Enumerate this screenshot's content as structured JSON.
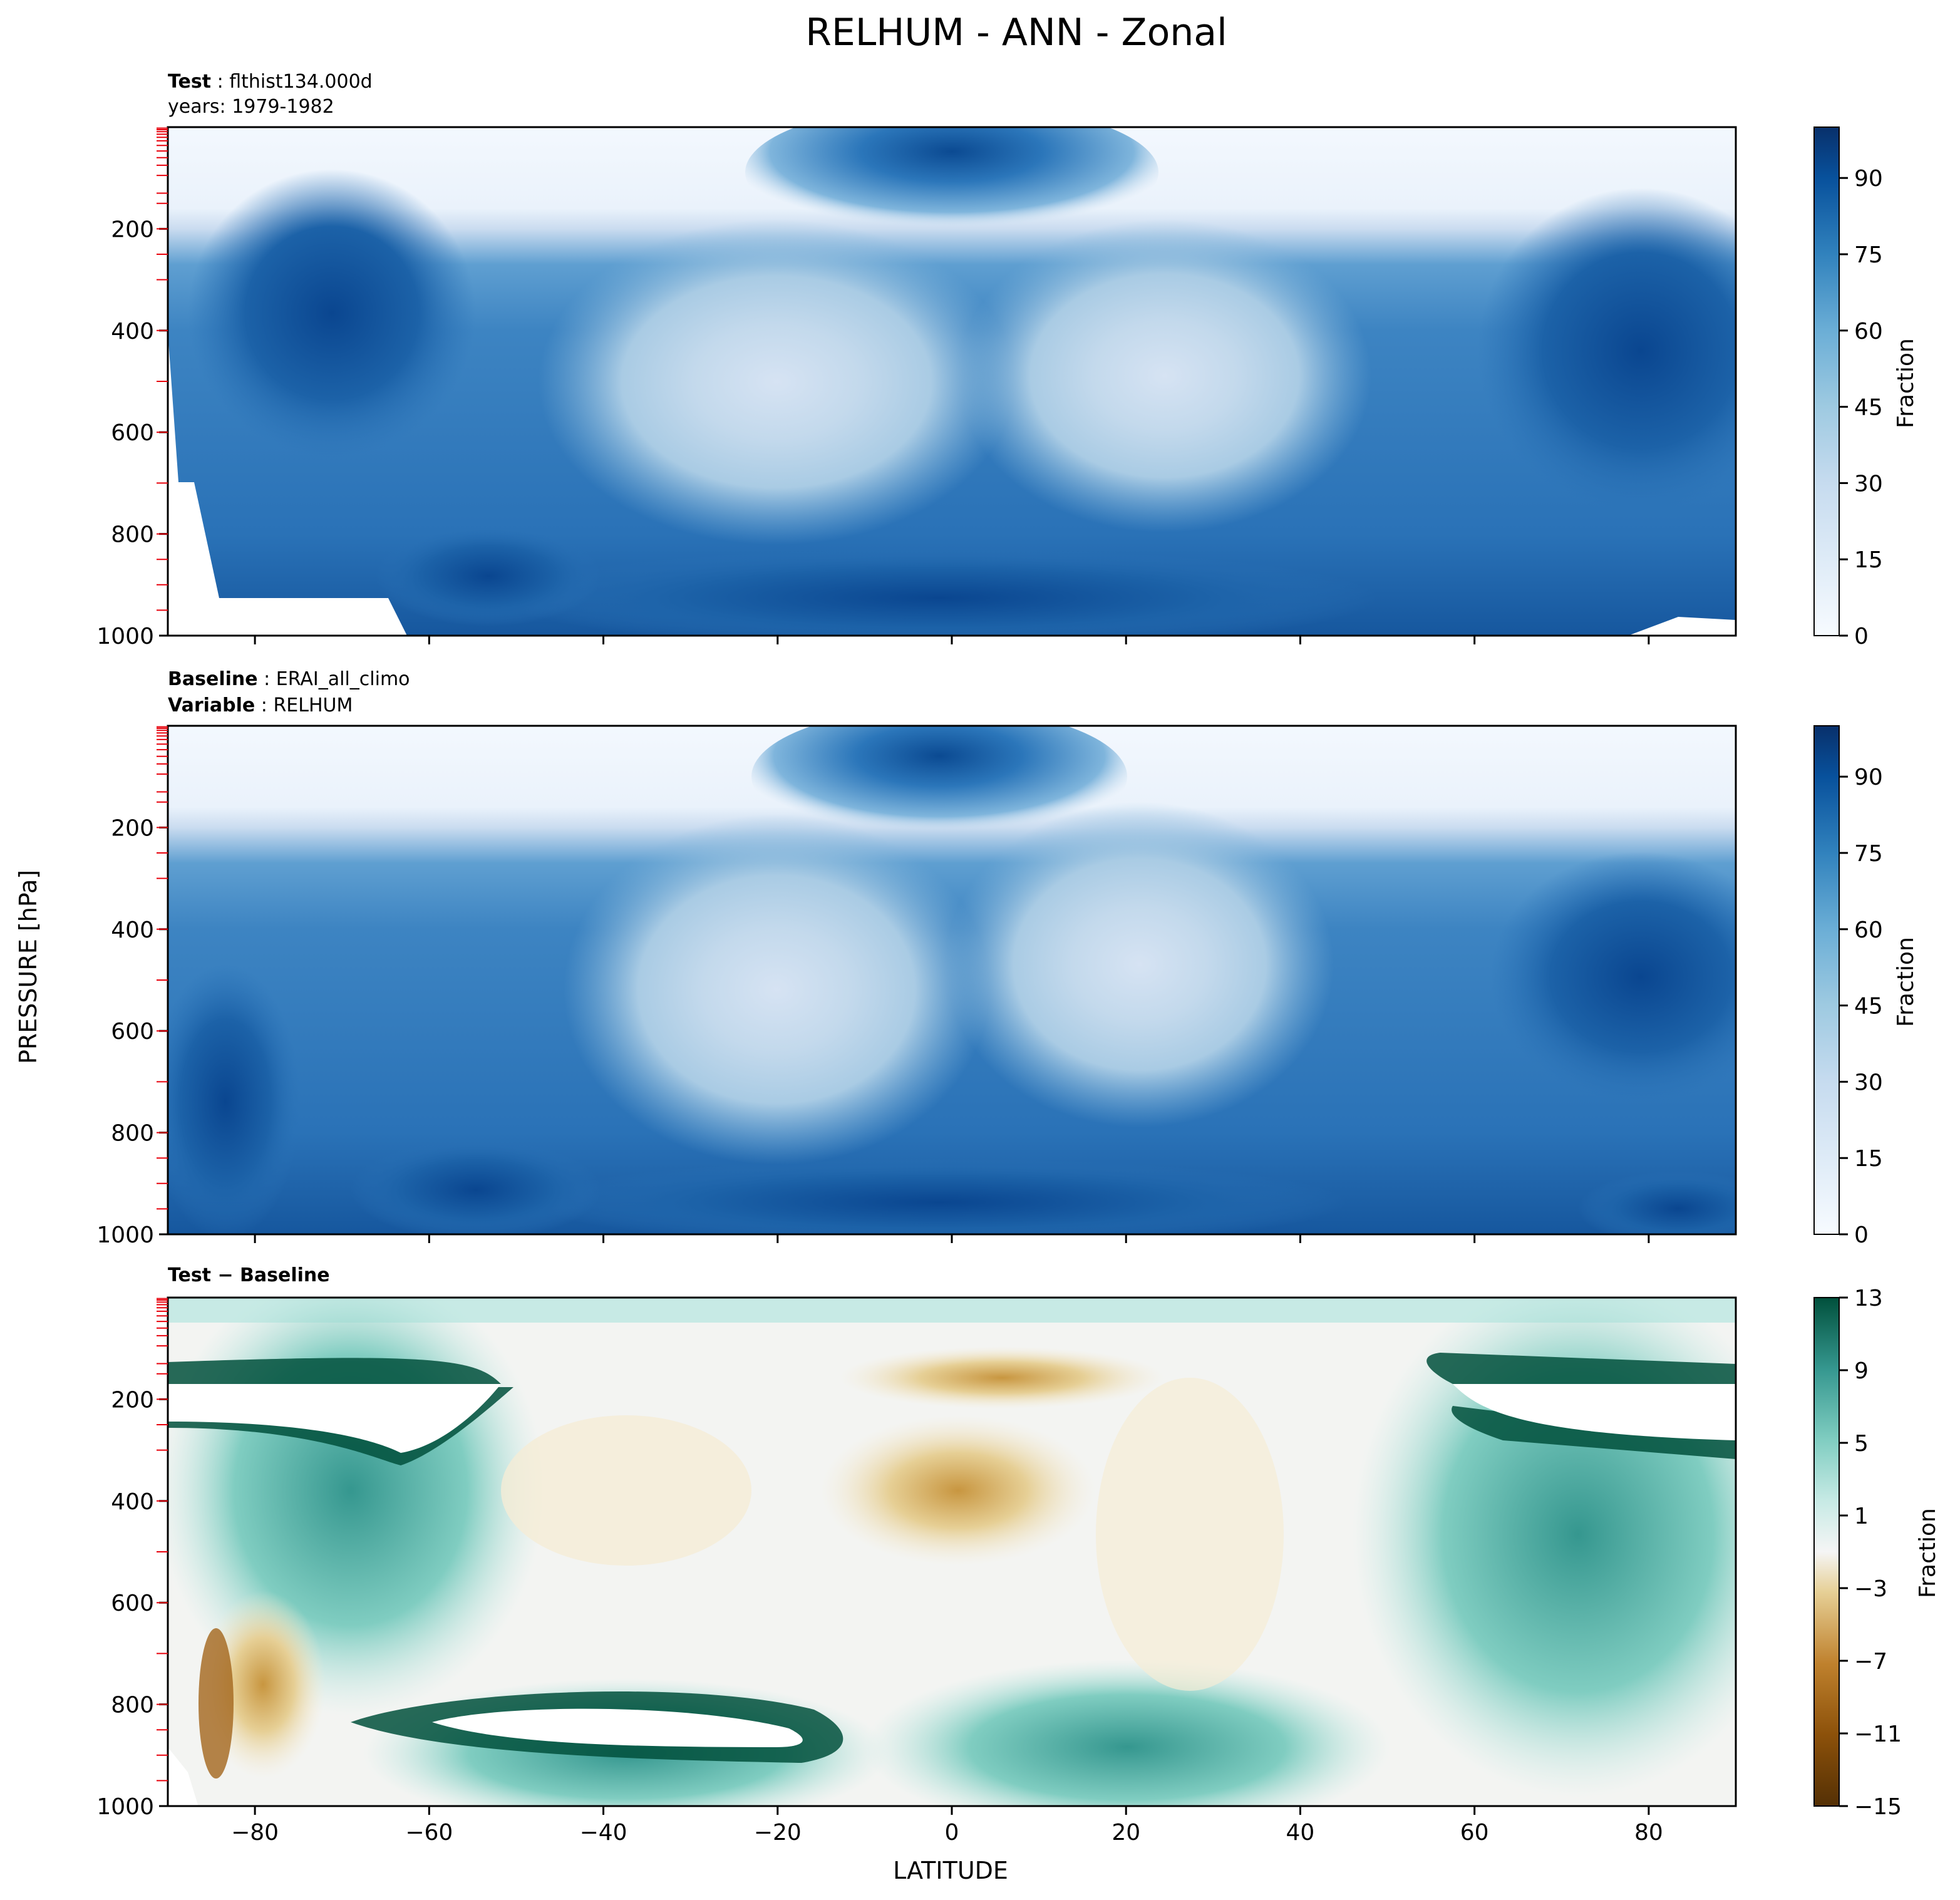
{
  "figure": {
    "title": "RELHUM - ANN - Zonal",
    "ylabel": "PRESSURE [hPa]",
    "xlabel": "LATITUDE"
  },
  "chart_data": [
    {
      "type": "heatmap",
      "panel": "test",
      "header": [
        {
          "bold": "Test",
          "text": "flthist134.000d"
        },
        {
          "bold": "",
          "text": "years: 1979-1982"
        }
      ],
      "x": {
        "range": [
          -90,
          90
        ],
        "ticks": [
          -80,
          -60,
          -40,
          -20,
          0,
          20,
          40,
          60,
          80
        ],
        "show_ticklabels": false
      },
      "y": {
        "range": [
          1000,
          0
        ],
        "ticks": [
          200,
          400,
          600,
          800,
          1000
        ],
        "inverted": true
      },
      "colorbar": {
        "label": "Fraction",
        "range": [
          0,
          100
        ],
        "ticks": [
          0,
          15,
          30,
          45,
          60,
          75,
          90
        ],
        "levels": 20,
        "colormap": "Blues"
      },
      "features": [
        {
          "desc": "upper troposphere dry",
          "lat": [
            -90,
            90
          ],
          "p": [
            0,
            200
          ],
          "value": 5
        },
        {
          "desc": "tropical tropopause moist maximum",
          "lat": [
            -25,
            25
          ],
          "p": [
            80,
            130
          ],
          "value": 90
        },
        {
          "desc": "subtropical dry minimum south",
          "lat": -25,
          "p": 480,
          "value": 20
        },
        {
          "desc": "subtropical dry minimum north",
          "lat": 22,
          "p": 480,
          "value": 25
        },
        {
          "desc": "boundary layer moist",
          "lat": [
            -90,
            90
          ],
          "p": [
            800,
            1000
          ],
          "value": 85
        },
        {
          "desc": "high latitude moist",
          "lat": [
            -90,
            -60
          ],
          "p": [
            250,
            800
          ],
          "value": 85
        }
      ]
    },
    {
      "type": "heatmap",
      "panel": "baseline",
      "header": [
        {
          "bold": "Baseline",
          "text": "ERAI_all_climo"
        },
        {
          "bold": "Variable",
          "text": "RELHUM"
        }
      ],
      "x": {
        "range": [
          -90,
          90
        ],
        "ticks": [
          -80,
          -60,
          -40,
          -20,
          0,
          20,
          40,
          60,
          80
        ],
        "show_ticklabels": false
      },
      "y": {
        "range": [
          1000,
          0
        ],
        "ticks": [
          200,
          400,
          600,
          800,
          1000
        ],
        "inverted": true
      },
      "colorbar": {
        "label": "Fraction",
        "range": [
          0,
          100
        ],
        "ticks": [
          0,
          15,
          30,
          45,
          60,
          75,
          90
        ],
        "levels": 20,
        "colormap": "Blues"
      },
      "features": [
        {
          "desc": "upper troposphere dry",
          "lat": [
            -90,
            90
          ],
          "p": [
            0,
            200
          ],
          "value": 5
        },
        {
          "desc": "tropical tropopause moist maximum",
          "lat": [
            -20,
            20
          ],
          "p": [
            80,
            150
          ],
          "value": 88
        },
        {
          "desc": "subtropical dry minimum south",
          "lat": -20,
          "p": 500,
          "value": 22
        },
        {
          "desc": "subtropical dry minimum north",
          "lat": 22,
          "p": 450,
          "value": 28
        },
        {
          "desc": "boundary layer moist",
          "lat": [
            -90,
            90
          ],
          "p": [
            800,
            1000
          ],
          "value": 80
        }
      ]
    },
    {
      "type": "heatmap",
      "panel": "difference",
      "header": [
        {
          "bold": "Test − Baseline",
          "text": ""
        }
      ],
      "x": {
        "range": [
          -90,
          90
        ],
        "ticks": [
          -80,
          -60,
          -40,
          -20,
          0,
          20,
          40,
          60,
          80
        ],
        "ticklabels": [
          "−80",
          "−60",
          "−40",
          "−20",
          "0",
          "20",
          "40",
          "60",
          "80"
        ]
      },
      "y": {
        "range": [
          1000,
          0
        ],
        "ticks": [
          200,
          400,
          600,
          800,
          1000
        ],
        "inverted": true
      },
      "colorbar": {
        "label": "Fraction",
        "range": [
          -15,
          13
        ],
        "levels": [
          -15,
          -13,
          -11,
          -9,
          -7,
          -5,
          -3,
          -1,
          1,
          3,
          5,
          7,
          9,
          11,
          13
        ],
        "ticks": [
          -15,
          -11,
          -7,
          -3,
          1,
          5,
          9,
          13
        ],
        "ticklabels": [
          "−15",
          "−11",
          "−7",
          "−3",
          "1",
          "5",
          "9",
          "13"
        ],
        "colormap": "BrBG"
      },
      "features": [
        {
          "desc": "large positive southern upper band",
          "lat": [
            -90,
            -50
          ],
          "p": [
            200,
            300
          ],
          "value": 15
        },
        {
          "desc": "large positive northern upper band",
          "lat": [
            60,
            90
          ],
          "p": [
            200,
            300
          ],
          "value": 15
        },
        {
          "desc": "large positive low level band",
          "lat": [
            -60,
            -20
          ],
          "p": [
            800,
            880
          ],
          "value": 15
        },
        {
          "desc": "tropical upper negative",
          "lat": [
            -10,
            20
          ],
          "p": [
            100,
            450
          ],
          "value": -6
        },
        {
          "desc": "southern polar low level negative",
          "lat": [
            -85,
            -75
          ],
          "p": [
            700,
            900
          ],
          "value": -9
        }
      ]
    }
  ]
}
